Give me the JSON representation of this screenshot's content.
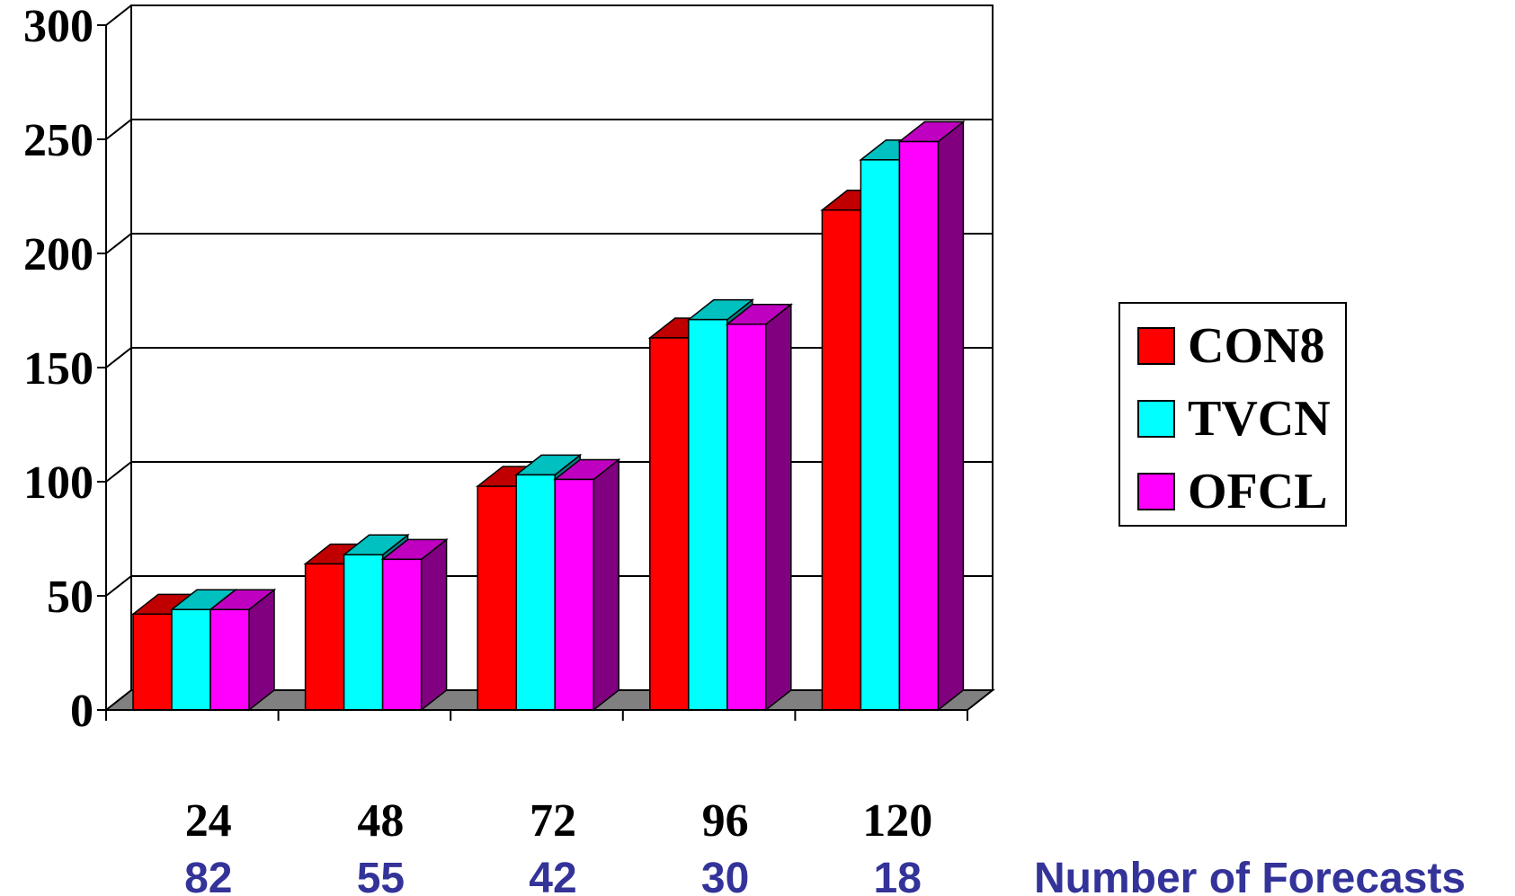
{
  "chart_data": {
    "type": "bar",
    "categories": [
      "24",
      "48",
      "72",
      "96",
      "120"
    ],
    "series": [
      {
        "name": "CON8",
        "values": [
          42,
          64,
          98,
          163,
          219
        ]
      },
      {
        "name": "TVCN",
        "values": [
          44,
          68,
          103,
          171,
          241
        ]
      },
      {
        "name": "OFCL",
        "values": [
          44,
          66,
          101,
          169,
          249
        ]
      }
    ],
    "counts": [
      "82",
      "55",
      "42",
      "30",
      "18"
    ],
    "counts_label": "Number of Forecasts",
    "y_ticks": [
      "0",
      "50",
      "100",
      "150",
      "200",
      "250",
      "300"
    ],
    "ylim": [
      0,
      300
    ],
    "grid": true,
    "style_3d": true,
    "legend_position": "right",
    "colors": {
      "CON8": {
        "front": "#ff0000",
        "top": "#c00000",
        "side": "#800000"
      },
      "TVCN": {
        "front": "#00ffff",
        "top": "#00c0c0",
        "side": "#008080"
      },
      "OFCL": {
        "front": "#ff00ff",
        "top": "#c000c0",
        "side": "#800080"
      },
      "floor": "#808080",
      "counts_text": "#333399"
    }
  }
}
